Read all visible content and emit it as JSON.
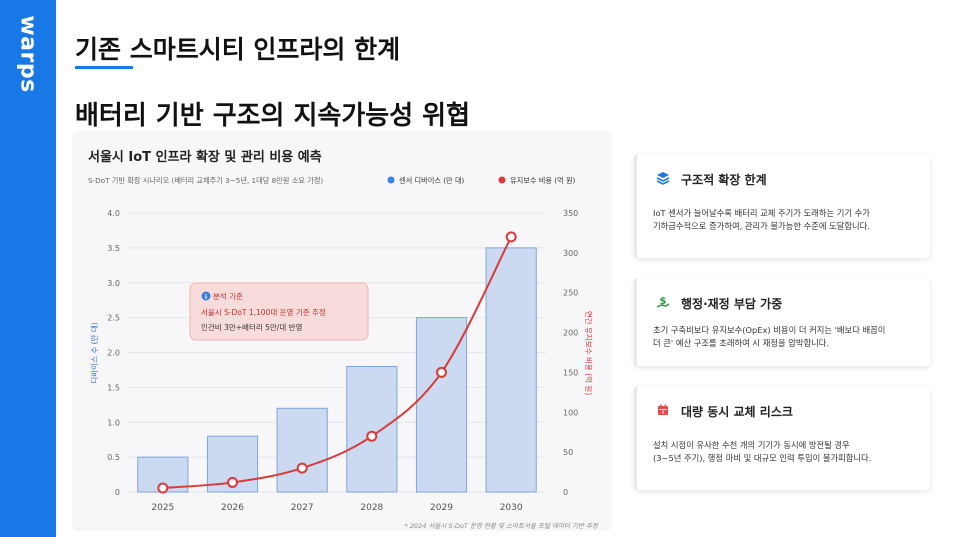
{
  "brand": {
    "name": "warps"
  },
  "header": {
    "title": "기존 스마트시티 인프라의 한계",
    "subtitle": "배터리 기반 구조의 지속가능성 위협"
  },
  "colors": {
    "accent": "#1878e6",
    "bar": "#cbdaf0",
    "bar_border": "#7fa6d8",
    "line": "#d93a3a"
  },
  "chart_data": {
    "type": "bar",
    "title": "서울시 IoT 인프라 확장 및 관리 비용 예측",
    "caption": "S-DoT 기반 확장 시나리오 (배터리 교체주기 3~5년, 1대당 8만원 소요 가정)",
    "categories": [
      "2025",
      "2026",
      "2027",
      "2028",
      "2029",
      "2030"
    ],
    "series": [
      {
        "name": "센서 디바이스 (만 대)",
        "type": "bar",
        "axis": "left",
        "values": [
          0.5,
          0.8,
          1.2,
          1.8,
          2.5,
          3.5
        ]
      },
      {
        "name": "유지보수 비용 (억 원)",
        "type": "line",
        "axis": "right",
        "values": [
          5,
          12,
          30,
          70,
          150,
          320
        ]
      }
    ],
    "y_left": {
      "label": "디바이스 수 (만 대)",
      "lim": [
        0,
        4.0
      ],
      "ticks": [
        "0",
        "0.5",
        "1.0",
        "1.5",
        "2.0",
        "2.5",
        "3.0",
        "3.5",
        "4.0"
      ]
    },
    "y_right": {
      "label": "연간 유지보수 비용 (억 원)",
      "lim": [
        0,
        350
      ],
      "ticks": [
        "0",
        "50",
        "100",
        "150",
        "200",
        "250",
        "300",
        "350"
      ]
    },
    "grid": true,
    "legend_position": "top-right",
    "annotation": {
      "heading": "분석 기준",
      "line1": "서울시 S-DoT 1,100대 운영 기준 추정",
      "line2": "인건비 3만+배터리 5만/대 반영"
    },
    "footnote": "* 2024 서울시 S-DoT 운영 현황 및 스마트서울 포털 데이터 기반 추정"
  },
  "cards": [
    {
      "title": "구조적 확장 한계",
      "icon": "layers-icon",
      "body": [
        "IoT 센서가 늘어날수록 배터리 교체 주기가 도래하는 기기 수가",
        "기하급수적으로 증가하여, 관리가 불가능한 수준에 도달합니다."
      ]
    },
    {
      "title": "행정·재정 부담 가중",
      "icon": "money-hand-icon",
      "body": [
        "초기 구축비보다 유지보수(OpEx) 비용이 더 커지는 '배보다 배꼽이",
        "더 큰' 예산 구조를 초래하여 시 재정을 압박합니다."
      ]
    },
    {
      "title": "대량 동시 교체 리스크",
      "icon": "calendar-alert-icon",
      "body": [
        "설치 시점이 유사한 수천 개의 기기가 동시에 방전될 경우",
        "(3~5년 주기), 행정 마비 및 대규모 인력 투입이 불가피합니다."
      ]
    }
  ]
}
